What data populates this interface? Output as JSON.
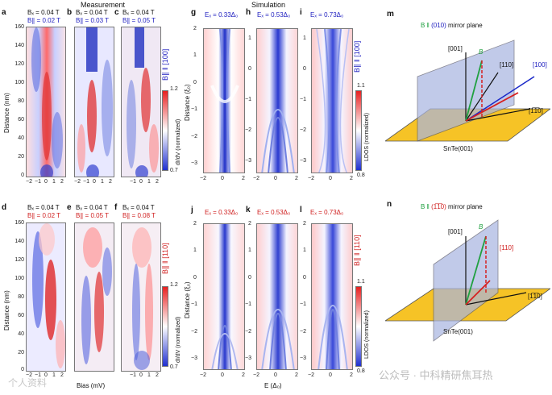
{
  "header": {
    "measurement": "Measurement",
    "simulation": "Simulation"
  },
  "panels": {
    "a": {
      "letter": "a",
      "bz": "Bₓ = 0.04 T",
      "b_par": "B∥ = 0.02 T"
    },
    "b": {
      "letter": "b",
      "bz": "Bₓ = 0.04 T",
      "b_par": "B∥ = 0.03 T"
    },
    "c": {
      "letter": "c",
      "bz": "Bₓ = 0.04 T",
      "b_par": "B∥ = 0.05 T"
    },
    "d": {
      "letter": "d",
      "bz": "Bₓ = 0.04 T",
      "b_par": "B∥ = 0.02 T"
    },
    "e": {
      "letter": "e",
      "bz": "Bₓ = 0.04 T",
      "b_par": "B∥ = 0.05 T"
    },
    "f": {
      "letter": "f",
      "bz": "Bₓ = 0.04 T",
      "b_par": "B∥ = 0.08 T"
    },
    "g": {
      "letter": "g",
      "ez": "Eₓ = 0.33Δ₀"
    },
    "h": {
      "letter": "h",
      "ez": "Eₓ = 0.53Δ₀"
    },
    "i": {
      "letter": "i",
      "ez": "Eₓ = 0.73Δ₀"
    },
    "j": {
      "letter": "j",
      "ez": "Eₓ = 0.33Δ₀"
    },
    "k": {
      "letter": "k",
      "ez": "Eₓ = 0.53Δ₀"
    },
    "l": {
      "letter": "l",
      "ez": "Eₓ = 0.73Δ₀"
    },
    "m": {
      "letter": "m"
    },
    "n": {
      "letter": "n"
    }
  },
  "side_labels": {
    "top_field": "B∥ ‖ [100]",
    "bottom_field": "B∥ ‖ [110]",
    "top_field_sim": "B∥ ‖ [100]",
    "bottom_field_sim": "B∥ ‖ [110]"
  },
  "axes": {
    "distance_nm": "Distance (nm)",
    "distance_xi": "Distance (ξ₀)",
    "bias": "Bias (mV)",
    "energy": "E (Δ₀)",
    "didv": "dI/dV (normalized)",
    "ldos": "LDOS (normalized)",
    "nm_ticks": [
      "160",
      "140",
      "120",
      "100",
      "80",
      "60",
      "40",
      "20",
      "0"
    ],
    "bias_ticks": [
      "−2",
      "−1",
      "0",
      "1",
      "2"
    ],
    "xi_ticks_top": [
      "2",
      "1",
      "0",
      "−1",
      "−2",
      "−3"
    ],
    "xi_ticks_top_alt": [
      "1",
      "0",
      "−1",
      "−2",
      "−3"
    ],
    "xi_ticks_bottom": [
      "2",
      "1",
      "0",
      "−1",
      "−2",
      "−3"
    ],
    "e_ticks": [
      "−2",
      "0",
      "2"
    ]
  },
  "colorbars": {
    "didv_top": {
      "max": "1.2",
      "min": "0.7"
    },
    "didv_bottom": {
      "max": "1.2",
      "min": "0.7"
    },
    "ldos_top": {
      "max": "1.1",
      "min": "0.8"
    },
    "ldos_bottom": {
      "max": "1.1",
      "min": "0.8"
    }
  },
  "diagram_m": {
    "title_prefix": "B ‖ ",
    "title_plane": "(010)",
    "title_suffix": " mirror plane",
    "label_001": "[001]",
    "label_110": "[110]",
    "label_100": "[100]",
    "label_1m10": "[1̅1̅0]",
    "label_B": "B",
    "surface": "SnTe(001)"
  },
  "diagram_n": {
    "title_prefix": "B ‖ ",
    "title_plane": "(1̅1̅0)",
    "title_suffix": " mirror plane",
    "label_001": "[001]",
    "label_110": "[110]",
    "label_1m10": "[1̅1̅0]",
    "label_B": "B",
    "surface": "SnTe(001)"
  },
  "watermark": {
    "left": "个人资料",
    "right": "公众号 · 中科精研焦耳热"
  },
  "colors": {
    "red": "#d62020",
    "blue": "#1a28c8",
    "white": "#ffffff",
    "plane_yellow": "#f5b800",
    "plane_blue": "#a8b4e0"
  }
}
